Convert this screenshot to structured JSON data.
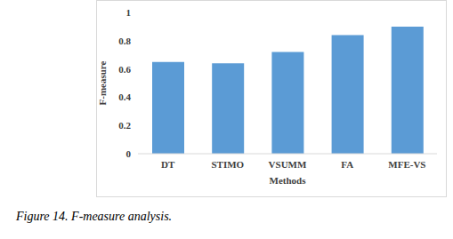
{
  "chart_data": {
    "type": "bar",
    "title": "Figure 14. F-measure analysis.",
    "x_label": "Methods",
    "y_label": "F-measure",
    "categories": [
      "DT",
      "STIMO",
      "VSUMM",
      "FA",
      "MFE-VS"
    ],
    "values": [
      0.65,
      0.64,
      0.72,
      0.84,
      0.9
    ],
    "color": "#5b9bd5",
    "ylim": [
      0,
      1
    ],
    "yticks": [
      0,
      0.2,
      0.4,
      0.6,
      0.8,
      1
    ],
    "grid": false
  }
}
